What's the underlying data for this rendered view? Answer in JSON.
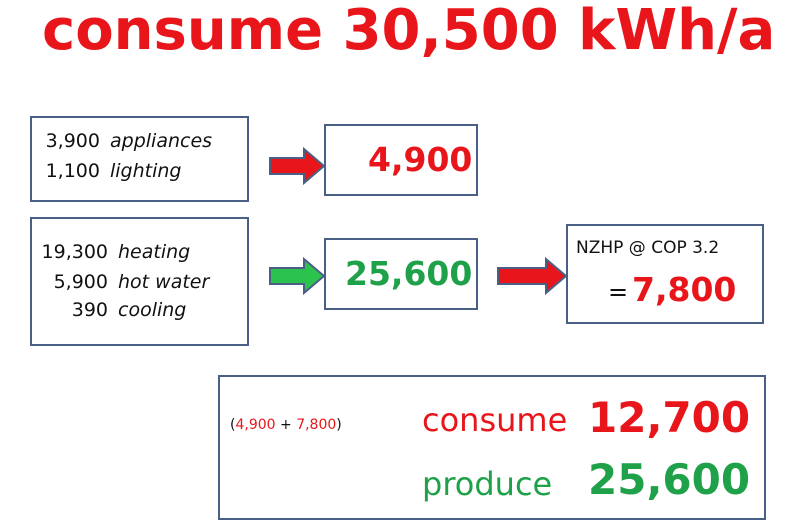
{
  "title": "consume 30,500 kWh/a",
  "box1": {
    "items": [
      {
        "value": "3,900",
        "label": "appliances"
      },
      {
        "value": "1,100",
        "label": "lighting"
      }
    ]
  },
  "result1": "4,900",
  "box2": {
    "items": [
      {
        "value": "19,300",
        "label": "heating"
      },
      {
        "value": "5,900",
        "label": "hot water"
      },
      {
        "value": "390",
        "label": "cooling"
      }
    ]
  },
  "result2": "25,600",
  "heatpump": {
    "line1": "NZHP @ COP 3.2",
    "equals": "=",
    "value": "7,800"
  },
  "summary": {
    "formula_open": "(",
    "formula_a": "4,900",
    "formula_plus": " + ",
    "formula_b": "7,800",
    "formula_close": ")",
    "consume_label": "consume",
    "consume_value": "12,700",
    "produce_label": "produce",
    "produce_value": "25,600"
  },
  "colors": {
    "red": "#e8161b",
    "green": "#1fa14a",
    "border": "#4a5f85"
  },
  "icons": [
    "red-arrow-icon",
    "green-arrow-icon",
    "red-arrow-icon"
  ]
}
